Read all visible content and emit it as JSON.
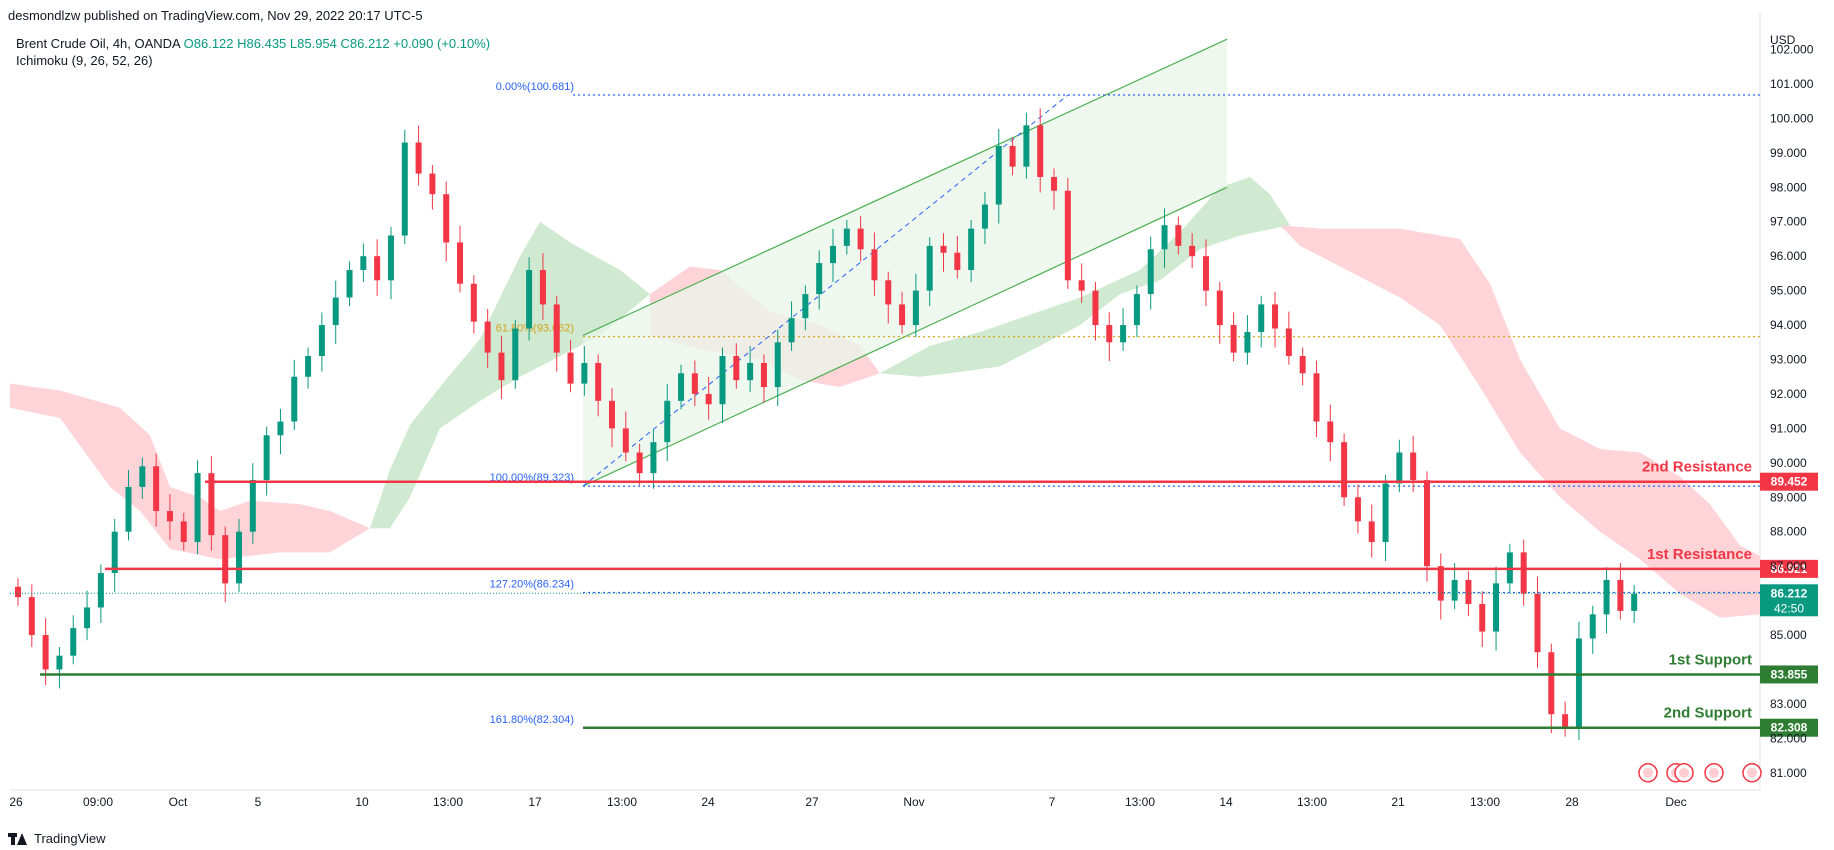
{
  "header": {
    "published_by": "desmondlzw published on TradingView.com, Nov 29, 2022 20:17 UTC-5"
  },
  "legend": {
    "symbol": "Brent Crude Oil, 4h, OANDA",
    "ohlc": "O86.122  H86.435  L85.954  C86.212  +0.090 (+0.10%)",
    "indicator": "Ichimoku (9, 26, 52, 26)"
  },
  "footer": {
    "brand": "TradingView"
  },
  "colors": {
    "up": "#089981",
    "down": "#f23645",
    "resistance": "#f23645",
    "support": "#2e7d32",
    "fib_blue": "#2962ff",
    "fib_gold": "#d4a017",
    "cloud_green": "#c8e6c9",
    "cloud_red": "#ffcdd2",
    "channel_fill": "#e8f5e9",
    "channel_line": "#4caf50"
  },
  "chart_data": {
    "type": "candlestick",
    "currency": "USD",
    "ylim": [
      80.5,
      102.8
    ],
    "y_ticks": [
      "102.000",
      "101.000",
      "100.000",
      "99.000",
      "98.000",
      "97.000",
      "96.000",
      "95.000",
      "94.000",
      "93.000",
      "92.000",
      "91.000",
      "90.000",
      "89.000",
      "88.000",
      "87.000",
      "85.000",
      "83.000",
      "82.000",
      "81.000"
    ],
    "x_ticks": [
      "26",
      "09:00",
      "Oct",
      "5",
      "10",
      "13:00",
      "17",
      "13:00",
      "24",
      "27",
      "Nov",
      "7",
      "13:00",
      "14",
      "13:00",
      "21",
      "13:00",
      "28",
      "Dec"
    ],
    "levels": [
      {
        "label": "2nd Resistance",
        "value": 89.452,
        "badge": "89.452",
        "kind": "resistance"
      },
      {
        "label": "1st Resistance",
        "value": 86.921,
        "badge": "86.921",
        "kind": "resistance"
      },
      {
        "label": "1st Support",
        "value": 83.855,
        "badge": "83.855",
        "kind": "support"
      },
      {
        "label": "2nd Support",
        "value": 82.308,
        "badge": "82.308",
        "kind": "support"
      }
    ],
    "current_price": {
      "value": 86.212,
      "badge": "86.212",
      "countdown": "42:50"
    },
    "fib_levels": [
      {
        "label": "0.00%(100.681)",
        "value": 100.681,
        "color": "blue"
      },
      {
        "label": "61.80%(93.662)",
        "value": 93.662,
        "color": "gold"
      },
      {
        "label": "100.00%(89.323)",
        "value": 89.323,
        "color": "blue"
      },
      {
        "label": "127.20%(86.234)",
        "value": 86.234,
        "color": "blue"
      },
      {
        "label": "161.80%(82.304)",
        "value": 82.304,
        "color": "blue"
      }
    ],
    "candles_close": [
      86.1,
      85.0,
      84.0,
      84.4,
      85.2,
      85.8,
      86.8,
      88.0,
      89.3,
      89.9,
      88.6,
      88.3,
      87.7,
      89.7,
      87.9,
      86.5,
      88.0,
      89.5,
      90.8,
      91.2,
      92.5,
      93.1,
      94.0,
      94.8,
      95.6,
      96.0,
      95.3,
      96.6,
      99.3,
      98.4,
      97.8,
      96.4,
      95.2,
      94.1,
      93.2,
      92.4,
      93.9,
      95.6,
      94.6,
      93.2,
      92.3,
      92.9,
      91.8,
      91.0,
      90.3,
      89.7,
      90.6,
      91.8,
      92.6,
      92.0,
      91.7,
      93.1,
      92.4,
      92.9,
      92.2,
      93.5,
      94.2,
      94.9,
      95.8,
      96.3,
      96.8,
      96.2,
      95.3,
      94.6,
      94.0,
      95.0,
      96.3,
      96.1,
      95.6,
      96.8,
      97.5,
      99.2,
      98.6,
      99.8,
      98.3,
      97.9,
      95.3,
      95.0,
      94.0,
      93.5,
      94.0,
      94.9,
      96.2,
      96.9,
      96.3,
      96.0,
      95.0,
      94.0,
      93.2,
      93.8,
      94.6,
      93.9,
      93.1,
      92.6,
      91.2,
      90.6,
      89.0,
      88.3,
      87.7,
      89.4,
      90.3,
      89.5,
      87.0,
      86.0,
      86.6,
      85.9,
      85.1,
      86.5,
      87.4,
      86.2,
      84.5,
      82.7,
      82.3,
      84.9,
      85.6,
      86.6,
      85.7,
      86.2
    ],
    "channel": {
      "lower_start": 89.323,
      "lower_end": 98.0,
      "upper_start": 93.7,
      "upper_end": 102.3
    }
  }
}
